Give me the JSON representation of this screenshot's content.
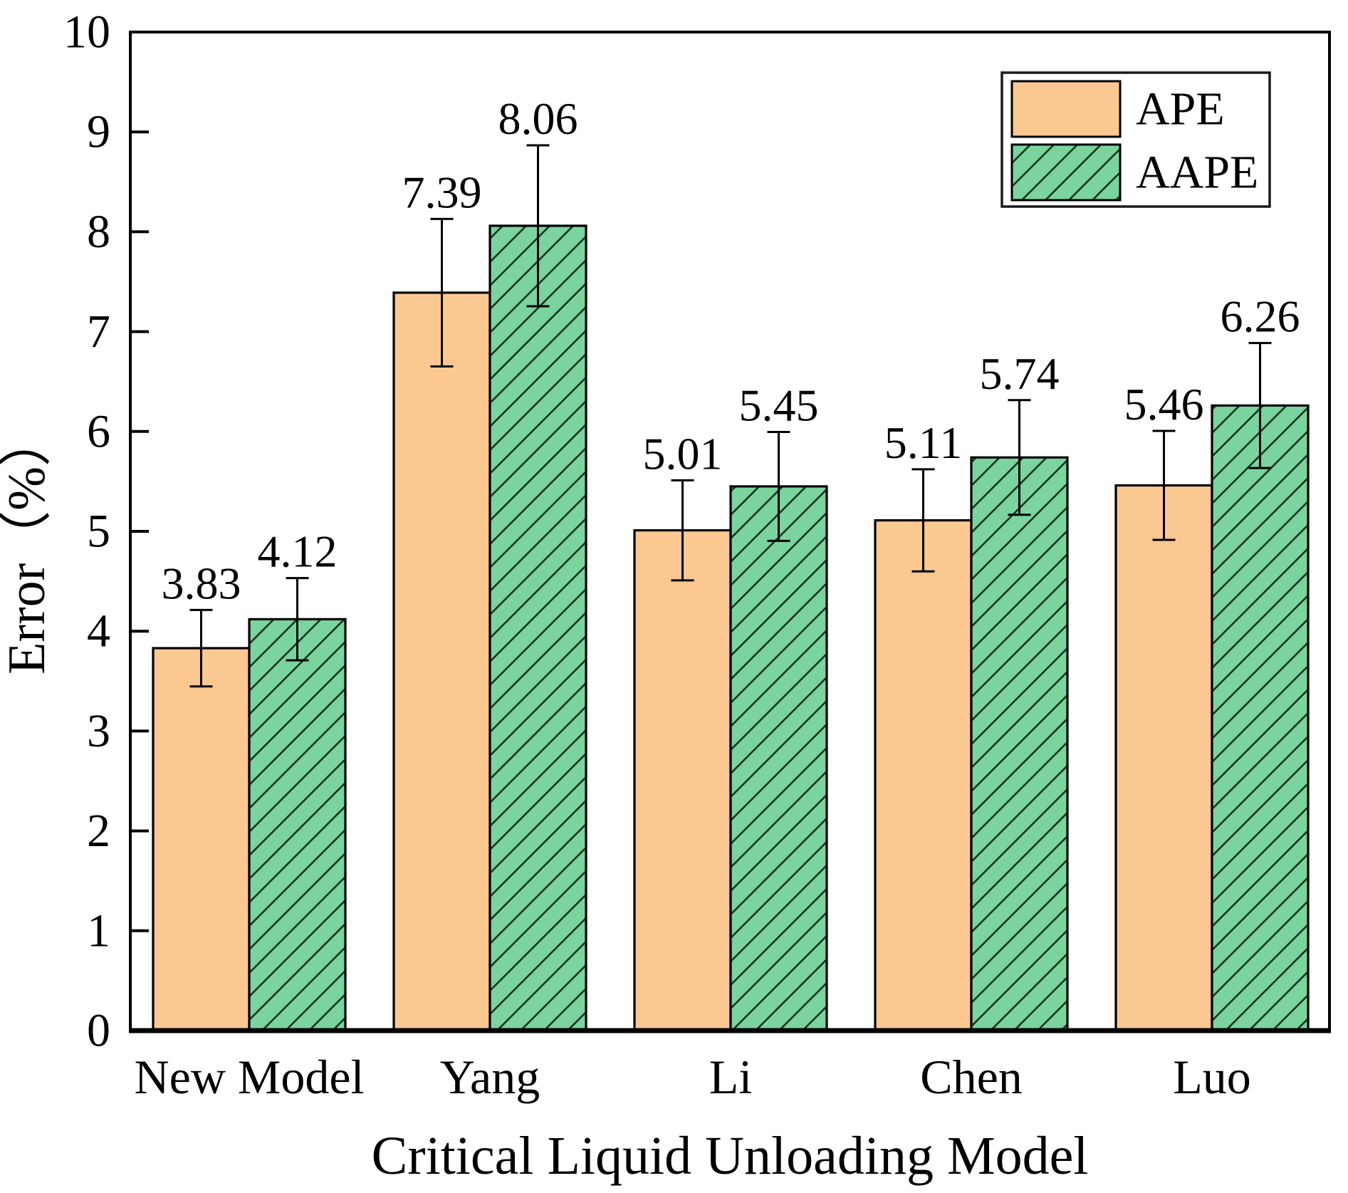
{
  "figure": {
    "background": "#ffffff"
  },
  "chart_data": {
    "type": "bar",
    "title": "",
    "xlabel": "Critical Liquid Unloading Model",
    "ylabel": "Error（%）",
    "categories": [
      "New Model",
      "Yang",
      "Li",
      "Chen",
      "Luo"
    ],
    "series": [
      {
        "name": "APE",
        "values": [
          3.83,
          7.39,
          5.01,
          5.11,
          5.46
        ],
        "labels": [
          "3.83",
          "7.39",
          "5.01",
          "5.11",
          "5.46"
        ],
        "fill": "#fcc892",
        "hatch": "none"
      },
      {
        "name": "AAPE",
        "values": [
          4.12,
          8.06,
          5.45,
          5.74,
          6.26
        ],
        "labels": [
          "4.12",
          "8.06",
          "5.45",
          "5.74",
          "6.26"
        ],
        "fill": "#7bd39e",
        "hatch": "diagonal"
      }
    ],
    "error_bars": {
      "mode": "percent-of-value",
      "percent": 10
    },
    "ylim": [
      0,
      10
    ],
    "yticks": [
      "0",
      "1",
      "2",
      "3",
      "4",
      "5",
      "6",
      "7",
      "8",
      "9",
      "10"
    ],
    "grid": false,
    "legend": {
      "position": "top-right",
      "entries": [
        "APE",
        "AAPE"
      ]
    },
    "colors": {
      "bar_edge": "#000000",
      "hatch_line": "#16361f",
      "axis": "#000000",
      "text": "#000000",
      "legend_border": "#1a1a1a",
      "legend_background": "#ffffff"
    }
  }
}
